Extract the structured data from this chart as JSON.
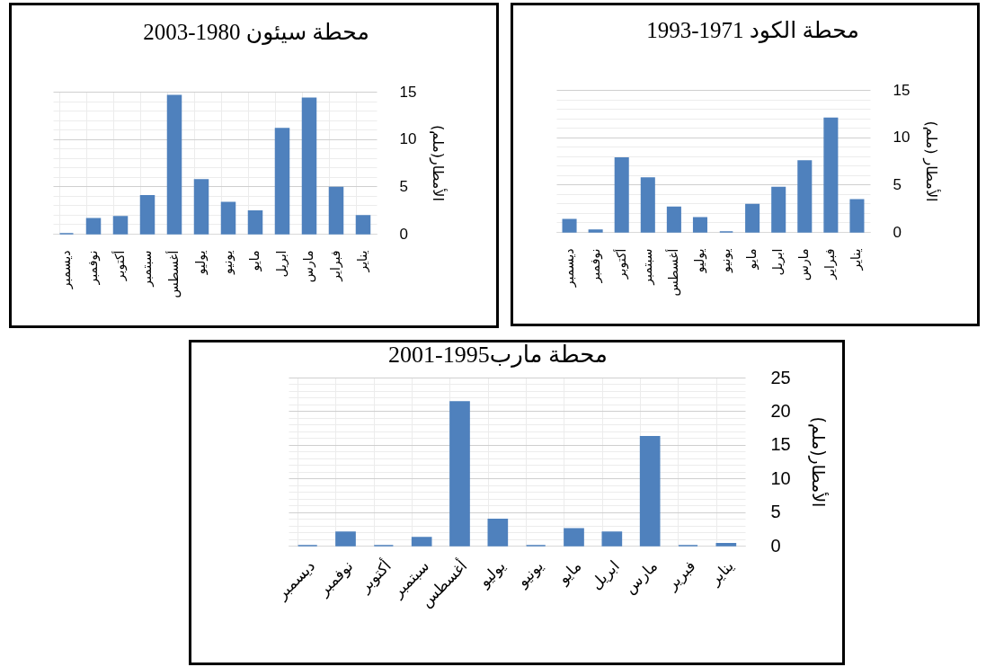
{
  "chart_data": [
    {
      "type": "bar",
      "title": "محطة سيئون 1980-2003",
      "ylabel": "الأمطار(ملم)",
      "categories": [
        "ديسمبر",
        "نوفمبر",
        "أكتوبر",
        "سبتمبر",
        "أغسطس",
        "يوليو",
        "يونيو",
        "مايو",
        "ابريل",
        "مارس",
        "فبراير",
        "يناير"
      ],
      "values": [
        0,
        1.6,
        1.8,
        4.0,
        14.6,
        5.7,
        3.3,
        2.4,
        11.1,
        14.3,
        4.9,
        1.9
      ],
      "color": "#4f81bd",
      "ylim": [
        0,
        15
      ],
      "yticks": [
        0,
        {
          "value": 1,
          "label": null
        },
        {
          "value": 2,
          "label": null
        },
        {
          "value": 3,
          "label": null
        },
        {
          "value": 4,
          "label": null
        },
        5,
        {
          "value": 6,
          "label": null
        },
        {
          "value": 7,
          "label": null
        },
        {
          "value": 8,
          "label": null
        },
        {
          "value": 9,
          "label": null
        },
        10,
        {
          "value": 11,
          "label": null
        },
        {
          "value": 12,
          "label": null
        },
        {
          "value": 13,
          "label": null
        },
        {
          "value": 14,
          "label": null
        },
        15
      ],
      "grid": true
    },
    {
      "type": "bar",
      "title": "محطة الكود 1971-1993",
      "ylabel": "الأمطار (ملم)",
      "categories": [
        "ديسمبر",
        "نوفمبر",
        "أكتوبر",
        "سبتمبر",
        "أغسطس",
        "يوليو",
        "يونيو",
        "مايو",
        "ابريل",
        "مارس",
        "فبراير",
        "يناير"
      ],
      "values": [
        1.3,
        0.2,
        7.8,
        5.7,
        2.6,
        1.5,
        0,
        2.9,
        4.7,
        7.5,
        12.0,
        3.4
      ],
      "color": "#4f81bd",
      "ylim": [
        0,
        15
      ],
      "yticks": [
        0,
        {
          "value": 1,
          "label": null
        },
        {
          "value": 2,
          "label": null
        },
        {
          "value": 3,
          "label": null
        },
        {
          "value": 4,
          "label": null
        },
        5,
        {
          "value": 6,
          "label": null
        },
        {
          "value": 7,
          "label": null
        },
        {
          "value": 8,
          "label": null
        },
        {
          "value": 9,
          "label": null
        },
        10,
        {
          "value": 11,
          "label": null
        },
        {
          "value": 12,
          "label": null
        },
        {
          "value": 13,
          "label": null
        },
        {
          "value": 14,
          "label": null
        },
        15
      ],
      "grid": "y"
    },
    {
      "type": "bar",
      "title": "محطة مارب1995-2001",
      "ylabel": "الأمطار(ملم)",
      "categories": [
        "ديسمبر",
        "نوفمبر",
        "أكتوبر",
        "سبتمبر",
        "أغسطس",
        "يوليو",
        "يونيو",
        "مايو",
        "ابريل",
        "مارس",
        "فبرير",
        "يناير"
      ],
      "values": [
        0,
        2.0,
        0,
        1.2,
        21.4,
        3.9,
        0,
        2.5,
        2.0,
        16.2,
        0,
        0.3
      ],
      "color": "#4f81bd",
      "ylim": [
        0,
        25
      ],
      "yticks": [
        0,
        {
          "value": 1,
          "label": null
        },
        {
          "value": 2,
          "label": null
        },
        {
          "value": 3,
          "label": null
        },
        {
          "value": 4,
          "label": null
        },
        5,
        {
          "value": 6,
          "label": null
        },
        {
          "value": 7,
          "label": null
        },
        {
          "value": 8,
          "label": null
        },
        {
          "value": 9,
          "label": null
        },
        10,
        {
          "value": 11,
          "label": null
        },
        {
          "value": 12,
          "label": null
        },
        {
          "value": 13,
          "label": null
        },
        {
          "value": 14,
          "label": null
        },
        15,
        {
          "value": 16,
          "label": null
        },
        {
          "value": 17,
          "label": null
        },
        {
          "value": 18,
          "label": null
        },
        {
          "value": 19,
          "label": null
        },
        20,
        {
          "value": 21,
          "label": null
        },
        {
          "value": 22,
          "label": null
        },
        {
          "value": 23,
          "label": null
        },
        {
          "value": 24,
          "label": null
        },
        25
      ],
      "grid": true
    }
  ]
}
